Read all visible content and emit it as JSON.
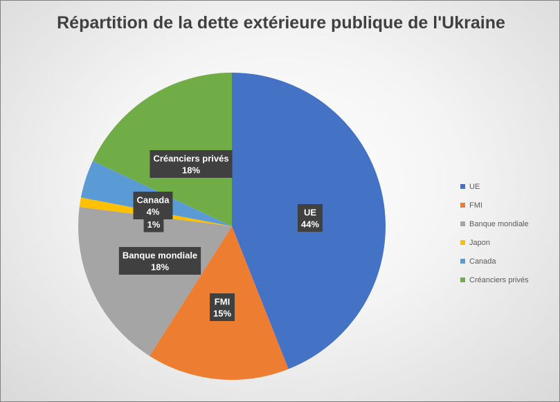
{
  "chart_data": {
    "type": "pie",
    "title": "Répartition de la dette extérieure publique de l'Ukraine",
    "slices": [
      {
        "label": "UE",
        "value": 44,
        "value_label": "44%",
        "color": "#4472C4"
      },
      {
        "label": "FMI",
        "value": 15,
        "value_label": "15%",
        "color": "#ED7D31"
      },
      {
        "label": "Banque mondiale",
        "value": 18,
        "value_label": "18%",
        "color": "#A5A5A5"
      },
      {
        "label": "Japon",
        "value": 1,
        "value_label": "1%",
        "color": "#FFC000"
      },
      {
        "label": "Canada",
        "value": 4,
        "value_label": "4%",
        "color": "#5B9BD5"
      },
      {
        "label": "Créanciers privés",
        "value": 18,
        "value_label": "18%",
        "color": "#70AD47"
      }
    ],
    "legend_position": "right"
  }
}
